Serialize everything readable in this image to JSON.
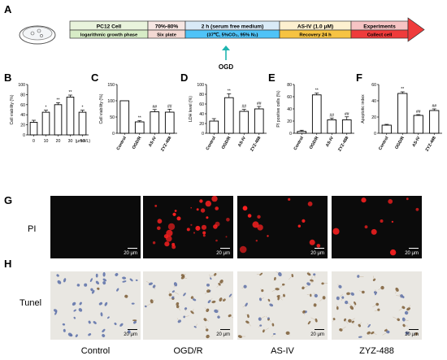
{
  "panels": {
    "A": "A",
    "B": "B",
    "C": "C",
    "D": "D",
    "E": "E",
    "F": "F",
    "G": "G",
    "H": "H"
  },
  "timeline": {
    "segments": [
      {
        "top": "PC12 Cell",
        "bottom": "logarithmic growth phase",
        "color": "#e9f3dc",
        "bcolor": "#d7ecc6"
      },
      {
        "top": "70%-80%",
        "bottom": "Six plate",
        "color": "#f7e7e3",
        "bcolor": "#f3d9d3"
      },
      {
        "top": "2 h (serum free medium)",
        "bottom": "(37℃,  5%CO₂,  95% N₂)",
        "color": "#d9eaf7",
        "bcolor": "#4fc3f7"
      },
      {
        "top": "AS-IV (1.0 μM)",
        "bottom": "Recovery 24 h",
        "color": "#fdf0d0",
        "bcolor": "#f6c342"
      },
      {
        "top": "Experiments",
        "bottom": "Collect cell",
        "color": "#f6c4c4",
        "bcolor": "#ef3b3b"
      }
    ],
    "ogd_label": "OGD"
  },
  "chart_data": [
    {
      "panel": "B",
      "type": "bar",
      "ylabel": "Cell viability (%)",
      "xlabel": "(μmol/L)",
      "categories": [
        "0",
        "10",
        "20",
        "30",
        "50"
      ],
      "values": [
        25,
        45,
        60,
        75,
        45
      ],
      "errors": [
        4,
        4,
        4,
        4,
        4
      ],
      "ylim": [
        0,
        100
      ],
      "yticks": [
        0,
        20,
        40,
        60,
        80,
        100
      ],
      "sig": [
        "",
        "*",
        "**",
        "**",
        "*"
      ]
    },
    {
      "panel": "C",
      "type": "bar",
      "ylabel": "Cell viability (%)",
      "categories": [
        "Control",
        "OGD/R",
        "AS-IV",
        "ZYZ-488"
      ],
      "values": [
        100,
        35,
        66,
        65
      ],
      "errors": [
        0,
        4,
        7,
        9
      ],
      "ylim": [
        0,
        150
      ],
      "yticks": [
        0,
        50,
        100,
        150
      ],
      "sig": [
        "",
        "**",
        "##",
        "##"
      ]
    },
    {
      "panel": "D",
      "type": "bar",
      "ylabel": "LDH level (%)",
      "categories": [
        "Control",
        "OGD/R",
        "AS-IV",
        "ZYZ-488"
      ],
      "values": [
        25,
        73,
        45,
        50
      ],
      "errors": [
        5,
        8,
        4,
        5
      ],
      "ylim": [
        0,
        100
      ],
      "yticks": [
        0,
        20,
        40,
        60,
        80,
        100
      ],
      "sig": [
        "",
        "**",
        "##",
        "##"
      ]
    },
    {
      "panel": "E",
      "type": "bar",
      "ylabel": "PI positive cells (%)",
      "categories": [
        "Control",
        "OGD/R",
        "AS-IV",
        "ZYZ-488"
      ],
      "values": [
        3,
        63,
        22,
        22
      ],
      "errors": [
        2,
        3,
        3,
        5
      ],
      "ylim": [
        0,
        80
      ],
      "yticks": [
        0,
        20,
        40,
        60,
        80
      ],
      "sig": [
        "",
        "**",
        "##",
        "##"
      ]
    },
    {
      "panel": "F",
      "type": "bar",
      "ylabel": "Apoptotic index",
      "categories": [
        "Control",
        "OGD/R",
        "AS-IV",
        "ZYZ-488"
      ],
      "values": [
        10,
        49,
        22,
        28
      ],
      "errors": [
        1,
        2,
        1,
        2
      ],
      "ylim": [
        0,
        60
      ],
      "yticks": [
        0,
        20,
        40,
        60
      ],
      "sig": [
        "",
        "**",
        "##",
        "##"
      ]
    }
  ],
  "micrographs": {
    "row_labels": {
      "g": "PI",
      "h": "Tunel"
    },
    "columns": [
      "Control",
      "OGD/R",
      "AS-IV",
      "ZYZ-488"
    ],
    "scale_label": "20 μm",
    "pi_colors": {
      "bg": "#0b0b0b",
      "dot": "#ff2020"
    },
    "tunel_colors": {
      "bg": "#e9e7e2",
      "nuclei_blue": "#5a6fa8",
      "nuclei_brown": "#7a5a34"
    }
  }
}
